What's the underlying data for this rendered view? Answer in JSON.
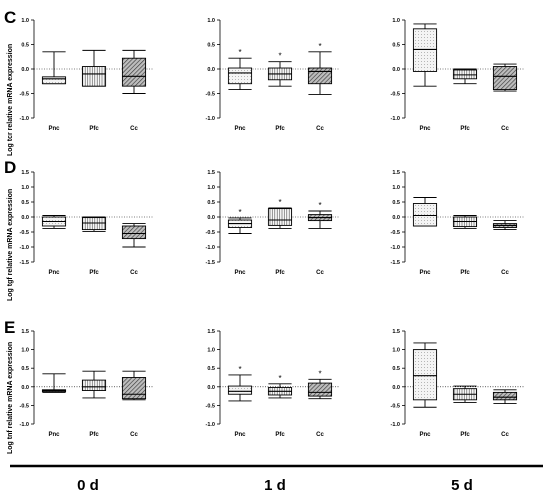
{
  "panels": [
    {
      "label": "C",
      "ylabel": "Log tcr relative mRNA expression"
    },
    {
      "label": "D",
      "ylabel": "Log tgf relative mRNA expression"
    },
    {
      "label": "E",
      "ylabel": "Log tnf relative mRNA expression"
    }
  ],
  "footer": {
    "days": [
      "0 d",
      "1 d",
      "5 d"
    ]
  },
  "colors": {
    "white_box": "#ffffff",
    "light_box": "#f0f0f0",
    "mid_box": "#d2d2d2",
    "dark_box": "#8c8c8c",
    "line": "#000000"
  },
  "chart_data": [
    {
      "type": "box",
      "panel": "C",
      "timepoint": "0 d",
      "ylim": [
        -1.0,
        1.0
      ],
      "yticks": [
        -1.0,
        -0.5,
        0.0,
        0.5,
        1.0
      ],
      "categories": [
        "Pnc",
        "Pfc",
        "Cc"
      ],
      "significance": [
        false,
        false,
        false
      ],
      "boxes": [
        {
          "min": -0.3,
          "q1": -0.3,
          "median": -0.2,
          "q3": -0.16,
          "max": 0.35
        },
        {
          "min": -0.35,
          "q1": -0.35,
          "median": -0.1,
          "q3": 0.05,
          "max": 0.38
        },
        {
          "min": -0.5,
          "q1": -0.35,
          "median": -0.15,
          "q3": 0.22,
          "max": 0.38
        }
      ]
    },
    {
      "type": "box",
      "panel": "C",
      "timepoint": "1 d",
      "ylim": [
        -1.0,
        1.0
      ],
      "yticks": [
        -1.0,
        -0.5,
        0.0,
        0.5,
        1.0
      ],
      "categories": [
        "Pnc",
        "Pfc",
        "Cc"
      ],
      "significance": [
        true,
        true,
        true
      ],
      "boxes": [
        {
          "min": -0.42,
          "q1": -0.3,
          "median": -0.08,
          "q3": 0.02,
          "max": 0.22
        },
        {
          "min": -0.35,
          "q1": -0.22,
          "median": -0.1,
          "q3": 0.02,
          "max": 0.15
        },
        {
          "min": -0.52,
          "q1": -0.3,
          "median": -0.05,
          "q3": 0.02,
          "max": 0.35
        }
      ]
    },
    {
      "type": "box",
      "panel": "C",
      "timepoint": "5 d",
      "ylim": [
        -1.0,
        1.0
      ],
      "yticks": [
        -1.0,
        -0.5,
        0.0,
        0.5,
        1.0
      ],
      "categories": [
        "Pnc",
        "Pfc",
        "Cc"
      ],
      "significance": [
        false,
        false,
        false
      ],
      "boxes": [
        {
          "min": -0.35,
          "q1": -0.05,
          "median": 0.4,
          "q3": 0.82,
          "max": 0.92
        },
        {
          "min": -0.3,
          "q1": -0.2,
          "median": -0.12,
          "q3": -0.02,
          "max": 0.0
        },
        {
          "min": -0.45,
          "q1": -0.42,
          "median": -0.15,
          "q3": 0.05,
          "max": 0.1
        }
      ]
    },
    {
      "type": "box",
      "panel": "D",
      "timepoint": "0 d",
      "ylim": [
        -1.5,
        1.5
      ],
      "yticks": [
        -1.5,
        -1.0,
        -0.5,
        0.0,
        0.5,
        1.0,
        1.5
      ],
      "categories": [
        "Pnc",
        "Pfc",
        "Cc"
      ],
      "significance": [
        false,
        false,
        false
      ],
      "boxes": [
        {
          "min": -0.38,
          "q1": -0.3,
          "median": -0.15,
          "q3": 0.0,
          "max": 0.05
        },
        {
          "min": -0.48,
          "q1": -0.42,
          "median": -0.2,
          "q3": -0.02,
          "max": 0.0
        },
        {
          "min": -1.0,
          "q1": -0.72,
          "median": -0.55,
          "q3": -0.3,
          "max": -0.22
        }
      ]
    },
    {
      "type": "box",
      "panel": "D",
      "timepoint": "1 d",
      "ylim": [
        -1.5,
        1.5
      ],
      "yticks": [
        -1.5,
        -1.0,
        -0.5,
        0.0,
        0.5,
        1.0,
        1.5
      ],
      "categories": [
        "Pnc",
        "Pfc",
        "Cc"
      ],
      "significance": [
        true,
        true,
        true
      ],
      "boxes": [
        {
          "min": -0.55,
          "q1": -0.35,
          "median": -0.22,
          "q3": -0.1,
          "max": -0.03
        },
        {
          "min": -0.38,
          "q1": -0.28,
          "median": -0.1,
          "q3": 0.28,
          "max": 0.3
        },
        {
          "min": -0.38,
          "q1": -0.12,
          "median": -0.02,
          "q3": 0.08,
          "max": 0.2
        }
      ]
    },
    {
      "type": "box",
      "panel": "D",
      "timepoint": "5 d",
      "ylim": [
        -1.5,
        1.5
      ],
      "yticks": [
        -1.5,
        -1.0,
        -0.5,
        0.0,
        0.5,
        1.0,
        1.5
      ],
      "categories": [
        "Pnc",
        "Pfc",
        "Cc"
      ],
      "significance": [
        false,
        false,
        false
      ],
      "boxes": [
        {
          "min": -0.3,
          "q1": -0.3,
          "median": 0.05,
          "q3": 0.45,
          "max": 0.65
        },
        {
          "min": -0.38,
          "q1": -0.32,
          "median": -0.15,
          "q3": 0.0,
          "max": 0.05
        },
        {
          "min": -0.42,
          "q1": -0.35,
          "median": -0.28,
          "q3": -0.22,
          "max": -0.12
        }
      ]
    },
    {
      "type": "box",
      "panel": "E",
      "timepoint": "0 d",
      "ylim": [
        -1.0,
        1.5
      ],
      "yticks": [
        -1.0,
        -0.5,
        0.0,
        0.5,
        1.0,
        1.5
      ],
      "categories": [
        "Pnc",
        "Pfc",
        "Cc"
      ],
      "significance": [
        false,
        false,
        false
      ],
      "boxes": [
        {
          "min": -0.15,
          "q1": -0.13,
          "median": -0.1,
          "q3": -0.08,
          "max": 0.35
        },
        {
          "min": -0.3,
          "q1": -0.1,
          "median": 0.0,
          "q3": 0.18,
          "max": 0.42
        },
        {
          "min": -0.35,
          "q1": -0.32,
          "median": -0.2,
          "q3": 0.25,
          "max": 0.42
        }
      ]
    },
    {
      "type": "box",
      "panel": "E",
      "timepoint": "1 d",
      "ylim": [
        -1.0,
        1.5
      ],
      "yticks": [
        -1.0,
        -0.5,
        0.0,
        0.5,
        1.0,
        1.5
      ],
      "categories": [
        "Pnc",
        "Pfc",
        "Cc"
      ],
      "significance": [
        true,
        true,
        true
      ],
      "boxes": [
        {
          "min": -0.38,
          "q1": -0.2,
          "median": -0.12,
          "q3": 0.02,
          "max": 0.32
        },
        {
          "min": -0.3,
          "q1": -0.22,
          "median": -0.12,
          "q3": -0.02,
          "max": 0.08
        },
        {
          "min": -0.32,
          "q1": -0.25,
          "median": -0.15,
          "q3": 0.1,
          "max": 0.2
        }
      ]
    },
    {
      "type": "box",
      "panel": "E",
      "timepoint": "5 d",
      "ylim": [
        -1.0,
        1.5
      ],
      "yticks": [
        -1.0,
        -0.5,
        0.0,
        0.5,
        1.0,
        1.5
      ],
      "categories": [
        "Pnc",
        "Pfc",
        "Cc"
      ],
      "significance": [
        false,
        false,
        false
      ],
      "boxes": [
        {
          "min": -0.55,
          "q1": -0.35,
          "median": 0.3,
          "q3": 1.0,
          "max": 1.18
        },
        {
          "min": -0.42,
          "q1": -0.35,
          "median": -0.2,
          "q3": -0.05,
          "max": 0.02
        },
        {
          "min": -0.45,
          "q1": -0.35,
          "median": -0.28,
          "q3": -0.15,
          "max": -0.08
        }
      ]
    }
  ]
}
